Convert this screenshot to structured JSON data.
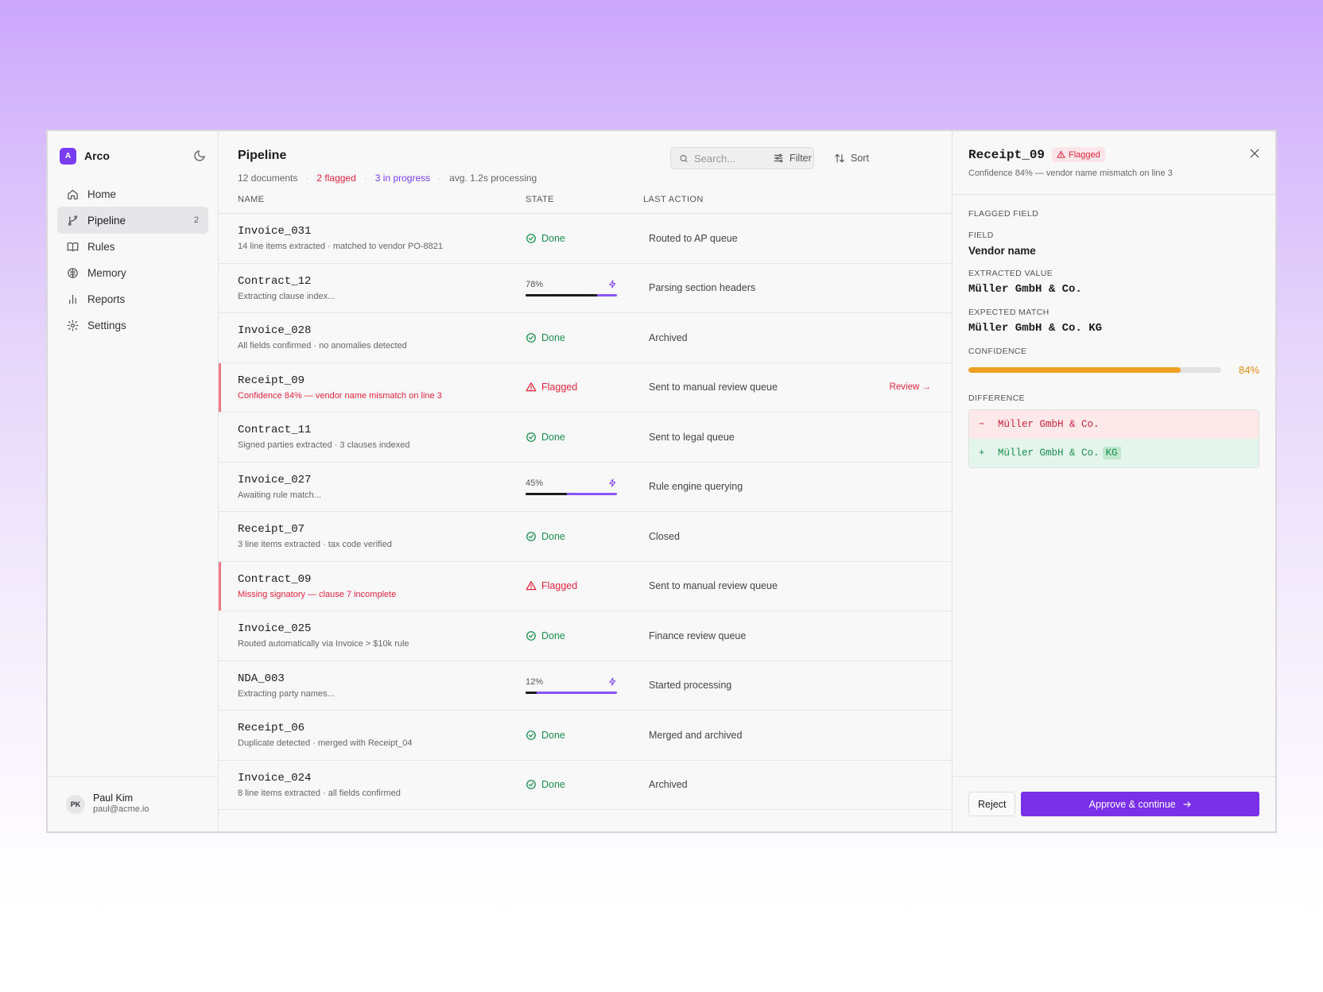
{
  "brand": {
    "logo_letter": "A",
    "name": "Arco"
  },
  "sidebar": {
    "items": [
      {
        "label": "Home",
        "icon": "home-icon"
      },
      {
        "label": "Pipeline",
        "icon": "branch-icon",
        "badge": "2",
        "active": true
      },
      {
        "label": "Rules",
        "icon": "book-icon"
      },
      {
        "label": "Memory",
        "icon": "brain-icon"
      },
      {
        "label": "Reports",
        "icon": "bar-chart-icon"
      },
      {
        "label": "Settings",
        "icon": "gear-icon"
      }
    ]
  },
  "user": {
    "initials": "PK",
    "name": "Paul Kim",
    "email": "paul@acme.io"
  },
  "main": {
    "title": "Pipeline",
    "stats": {
      "documents": "12 documents",
      "flagged": "2 flagged",
      "in_progress": "3 in progress",
      "avg": "avg. 1.2s processing"
    },
    "search_placeholder": "Search...",
    "filter_label": "Filter",
    "sort_label": "Sort",
    "columns": {
      "name": "NAME",
      "state": "STATE",
      "last_action": "LAST ACTION"
    },
    "review_label": "Review →",
    "rows": [
      {
        "name": "Invoice_031",
        "sub": "14 line items extracted · matched to vendor PO-8821",
        "state": "done",
        "state_label": "Done",
        "action": "Routed to AP queue"
      },
      {
        "name": "Contract_12",
        "sub": "Extracting clause index...",
        "state": "progress",
        "progress": 0.78,
        "progress_label": "78%",
        "action": "Parsing section headers"
      },
      {
        "name": "Invoice_028",
        "sub": "All fields confirmed · no anomalies detected",
        "state": "done",
        "state_label": "Done",
        "action": "Archived"
      },
      {
        "name": "Receipt_09",
        "sub": "Confidence 84% — vendor name mismatch on line 3",
        "state": "flagged",
        "state_label": "Flagged",
        "action": "Sent to manual review queue",
        "review": true
      },
      {
        "name": "Contract_11",
        "sub": "Signed parties extracted · 3 clauses indexed",
        "state": "done",
        "state_label": "Done",
        "action": "Sent to legal queue"
      },
      {
        "name": "Invoice_027",
        "sub": "Awaiting rule match...",
        "state": "progress",
        "progress": 0.45,
        "progress_label": "45%",
        "action": "Rule engine querying"
      },
      {
        "name": "Receipt_07",
        "sub": "3 line items extracted · tax code verified",
        "state": "done",
        "state_label": "Done",
        "action": "Closed"
      },
      {
        "name": "Contract_09",
        "sub": "Missing signatory — clause 7 incomplete",
        "state": "flagged",
        "state_label": "Flagged",
        "action": "Sent to manual review queue"
      },
      {
        "name": "Invoice_025",
        "sub": "Routed automatically via Invoice > $10k rule",
        "state": "done",
        "state_label": "Done",
        "action": "Finance review queue"
      },
      {
        "name": "NDA_003",
        "sub": "Extracting party names...",
        "state": "progress",
        "progress": 0.12,
        "progress_label": "12%",
        "action": "Started processing"
      },
      {
        "name": "Receipt_06",
        "sub": "Duplicate detected · merged with Receipt_04",
        "state": "done",
        "state_label": "Done",
        "action": "Merged and archived"
      },
      {
        "name": "Invoice_024",
        "sub": "8 line items extracted · all fields confirmed",
        "state": "done",
        "state_label": "Done",
        "action": "Archived"
      }
    ]
  },
  "panel": {
    "title": "Receipt_09",
    "badge": "Flagged",
    "subtitle": "Confidence 84% — vendor name mismatch on line 3",
    "section": "FLAGGED FIELD",
    "field_label": "FIELD",
    "field_value": "Vendor name",
    "extracted_label": "EXTRACTED VALUE",
    "extracted_value": "Müller GmbH & Co.",
    "expected_label": "EXPECTED MATCH",
    "expected_value": "Müller GmbH & Co. KG",
    "confidence_label": "CONFIDENCE",
    "confidence": 0.84,
    "confidence_text": "84%",
    "difference_label": "DIFFERENCE",
    "diff_removed_sign": "−",
    "diff_removed": "Müller GmbH & Co.",
    "diff_added_sign": "+",
    "diff_added": "Müller GmbH & Co.",
    "diff_added_highlight": "KG",
    "reject_label": "Reject",
    "approve_label": "Approve & continue"
  },
  "colors": {
    "accent": "#7a3cf0",
    "flagged": "#e0243e",
    "done": "#1a8f4f",
    "confidence": "#f0a020"
  }
}
